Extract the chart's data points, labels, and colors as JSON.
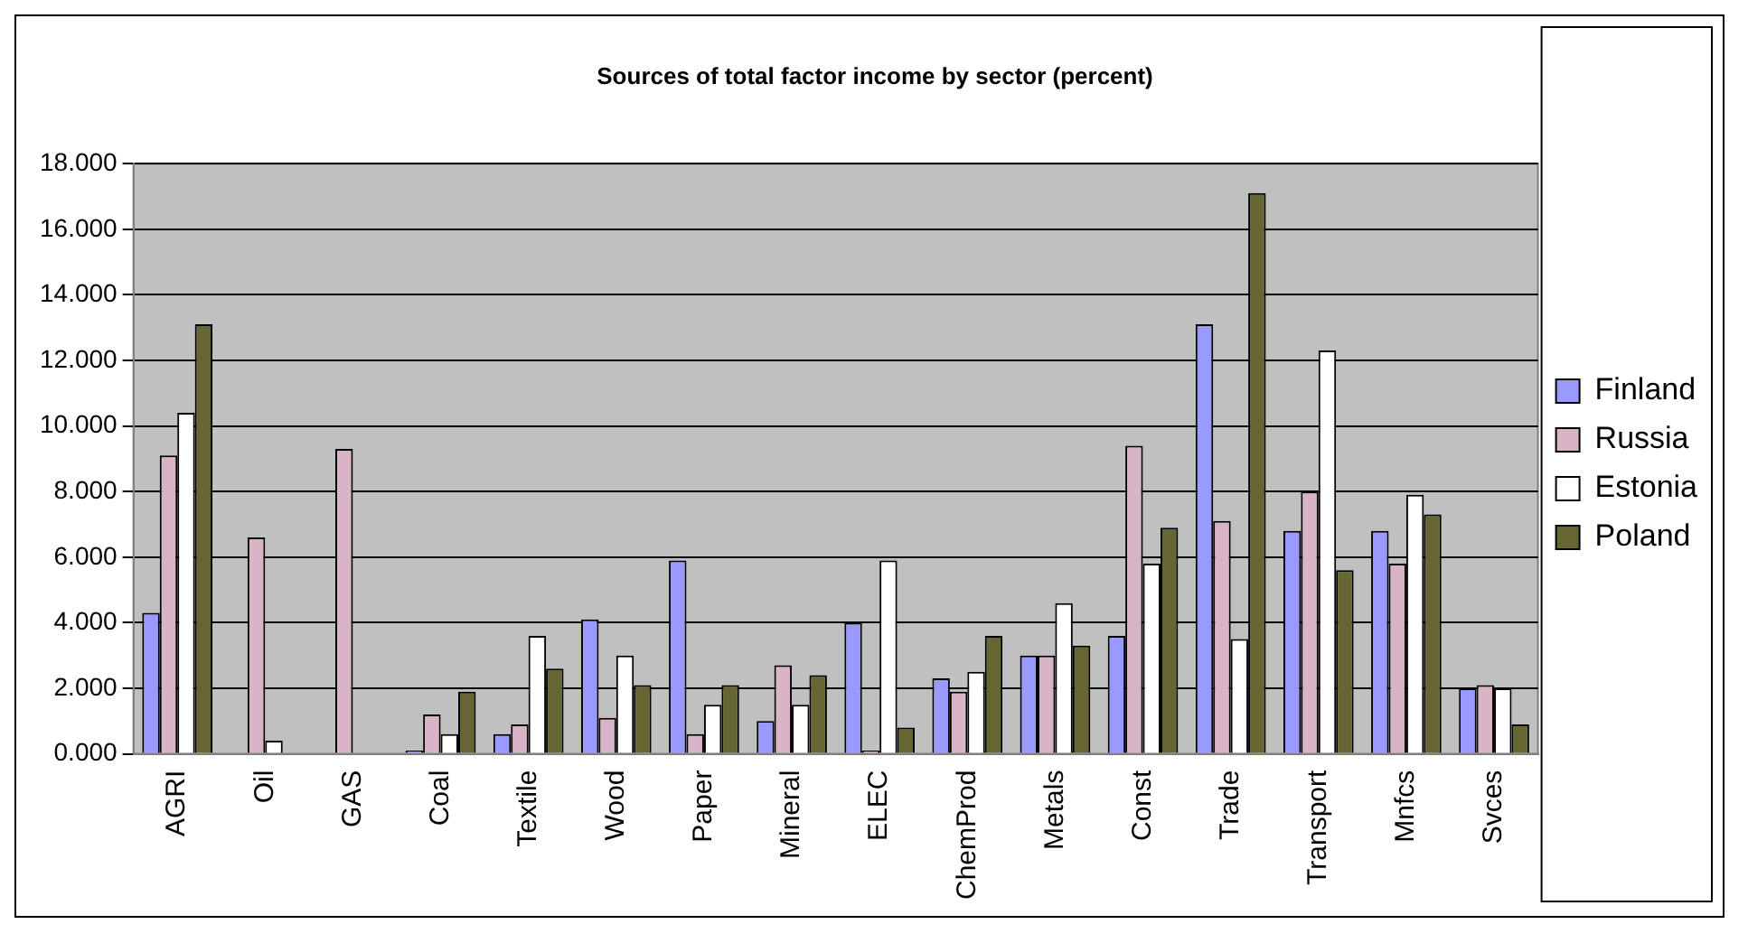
{
  "chart_data": {
    "type": "bar",
    "title": "Sources of total factor income by sector (percent)",
    "categories": [
      "AGRI",
      "Oil",
      "GAS",
      "Coal",
      "Textile",
      "Wood",
      "Paper",
      "Mineral",
      "ELEC",
      "ChemProd",
      "Metals",
      "Const",
      "Trade",
      "Transport",
      "Mnfcs",
      "Svces"
    ],
    "series": [
      {
        "name": "Finland",
        "color": "#9999ff",
        "values": [
          4.3,
          0,
          0,
          0.1,
          0.6,
          4.1,
          5.9,
          1.0,
          4.0,
          2.3,
          3.0,
          3.6,
          13.1,
          6.8,
          6.8,
          2.0
        ]
      },
      {
        "name": "Russia",
        "color": "#d9b3c6",
        "values": [
          9.1,
          6.6,
          9.3,
          1.2,
          0.9,
          1.1,
          0.6,
          2.7,
          0.1,
          1.9,
          3.0,
          9.4,
          7.1,
          8.0,
          5.8,
          2.1
        ]
      },
      {
        "name": "Estonia",
        "color": "#ffffff",
        "values": [
          10.4,
          0.4,
          0,
          0.6,
          3.6,
          3.0,
          1.5,
          1.5,
          5.9,
          2.5,
          4.6,
          5.8,
          3.5,
          12.3,
          7.9,
          2.0
        ]
      },
      {
        "name": "Poland",
        "color": "#666633",
        "values": [
          13.1,
          0,
          0,
          1.9,
          2.6,
          2.1,
          2.1,
          2.4,
          0.8,
          3.6,
          3.3,
          6.9,
          17.1,
          5.6,
          7.3,
          0.9
        ]
      }
    ],
    "ylim": [
      0,
      18
    ],
    "yticks": [
      {
        "value": 0,
        "label": "0.000"
      },
      {
        "value": 2,
        "label": "2.000"
      },
      {
        "value": 4,
        "label": "4.000"
      },
      {
        "value": 6,
        "label": "6.000"
      },
      {
        "value": 8,
        "label": "8.000"
      },
      {
        "value": 10,
        "label": "10.000"
      },
      {
        "value": 12,
        "label": "12.000"
      },
      {
        "value": 14,
        "label": "14.000"
      },
      {
        "value": 16,
        "label": "16.000"
      },
      {
        "value": 18,
        "label": "18.000"
      }
    ],
    "grid": "y",
    "legend": "right"
  }
}
